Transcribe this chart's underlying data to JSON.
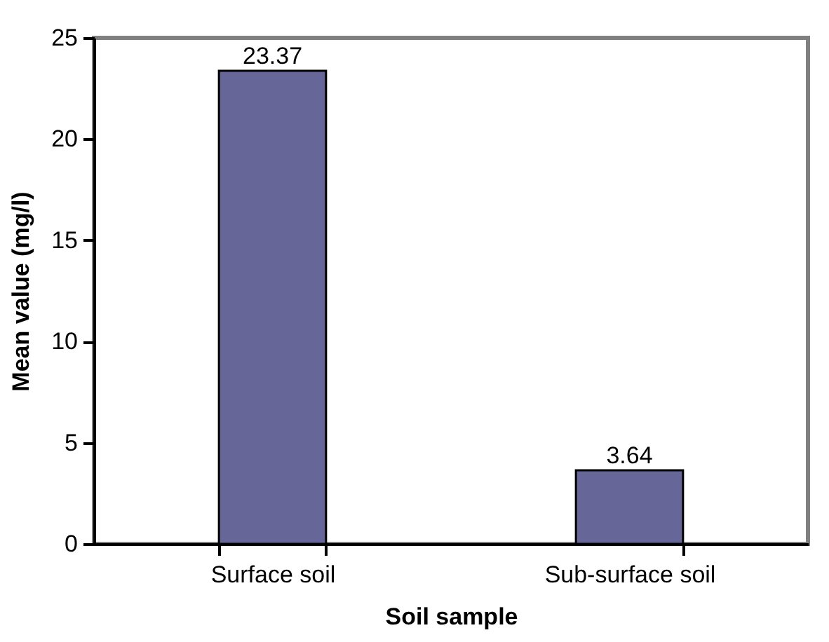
{
  "chart_data": {
    "type": "bar",
    "categories": [
      "Surface soil",
      "Sub-surface soil"
    ],
    "values": [
      23.37,
      3.64
    ],
    "color": "#666699",
    "xlabel": "Soil sample",
    "ylabel": "Mean value (mg/l)",
    "ylim": [
      0,
      25
    ],
    "yticks": [
      0,
      5,
      10,
      15,
      20,
      25
    ],
    "data_labels": true,
    "grid": false
  }
}
